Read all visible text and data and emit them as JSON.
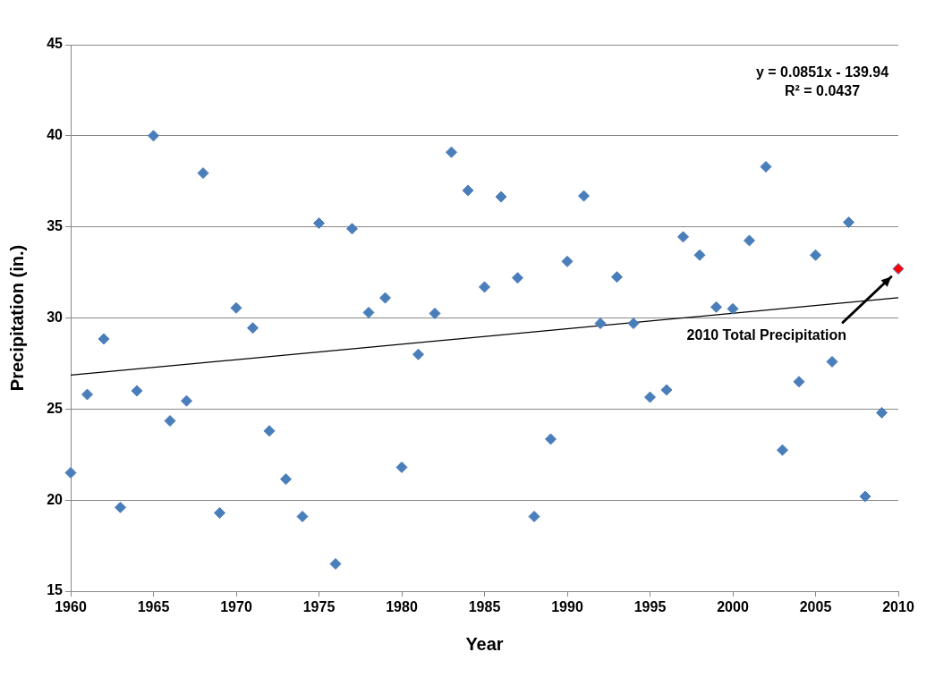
{
  "chart_data": {
    "type": "scatter",
    "xlabel": "Year",
    "ylabel": "Precipitation (in.)",
    "xlim": [
      1960,
      2010
    ],
    "xticks": [
      1960,
      1965,
      1970,
      1975,
      1980,
      1985,
      1990,
      1995,
      2000,
      2005,
      2010
    ],
    "ylim": [
      15,
      45
    ],
    "yticks": [
      15,
      20,
      25,
      30,
      35,
      40,
      45
    ],
    "grid": "y",
    "legend": false,
    "series": [
      {
        "color": "#4a7ebb",
        "marker": "diamond",
        "x": [
          1960,
          1961,
          1962,
          1963,
          1964,
          1965,
          1966,
          1967,
          1968,
          1969,
          1970,
          1971,
          1972,
          1973,
          1974,
          1975,
          1976,
          1977,
          1978,
          1979,
          1980,
          1981,
          1982,
          1983,
          1984,
          1985,
          1986,
          1987,
          1988,
          1989,
          1990,
          1991,
          1992,
          1993,
          1994,
          1995,
          1996,
          1997,
          1998,
          1999,
          2000,
          2001,
          2002,
          2003,
          2004,
          2005,
          2006,
          2007,
          2008,
          2009,
          2010
        ],
        "values": [
          21.5,
          25.8,
          28.85,
          19.6,
          26.0,
          40.0,
          24.35,
          25.45,
          37.95,
          19.3,
          30.55,
          29.45,
          23.8,
          21.15,
          19.1,
          35.2,
          16.5,
          34.9,
          30.3,
          31.1,
          21.8,
          28.0,
          30.25,
          39.1,
          37.0,
          31.7,
          36.65,
          32.2,
          19.1,
          23.35,
          33.1,
          36.7,
          29.7,
          32.25,
          29.7,
          25.65,
          26.05,
          34.45,
          33.45,
          30.6,
          30.5,
          34.25,
          38.3,
          22.75,
          26.5,
          33.45,
          27.6,
          35.25,
          20.2,
          24.8,
          32.7
        ],
        "colors": [
          "#4a7ebb",
          "#4a7ebb",
          "#4a7ebb",
          "#4a7ebb",
          "#4a7ebb",
          "#4a7ebb",
          "#4a7ebb",
          "#4a7ebb",
          "#4a7ebb",
          "#4a7ebb",
          "#4a7ebb",
          "#4a7ebb",
          "#4a7ebb",
          "#4a7ebb",
          "#4a7ebb",
          "#4a7ebb",
          "#4a7ebb",
          "#4a7ebb",
          "#4a7ebb",
          "#4a7ebb",
          "#4a7ebb",
          "#4a7ebb",
          "#4a7ebb",
          "#4a7ebb",
          "#4a7ebb",
          "#4a7ebb",
          "#4a7ebb",
          "#4a7ebb",
          "#4a7ebb",
          "#4a7ebb",
          "#4a7ebb",
          "#4a7ebb",
          "#4a7ebb",
          "#4a7ebb",
          "#4a7ebb",
          "#4a7ebb",
          "#4a7ebb",
          "#4a7ebb",
          "#4a7ebb",
          "#4a7ebb",
          "#4a7ebb",
          "#4a7ebb",
          "#4a7ebb",
          "#4a7ebb",
          "#4a7ebb",
          "#4a7ebb",
          "#4a7ebb",
          "#4a7ebb",
          "#4a7ebb",
          "#4a7ebb",
          "#ff0000"
        ]
      },
      {
        "type": "line",
        "color": "#000000",
        "marker": "none",
        "x": [
          1960,
          2010
        ],
        "values": [
          26.86,
          31.11
        ]
      }
    ],
    "annotations": [
      "y = 0.0851x - 139.94",
      "R² = 0.0437",
      "2010 Total Precipitation"
    ]
  }
}
